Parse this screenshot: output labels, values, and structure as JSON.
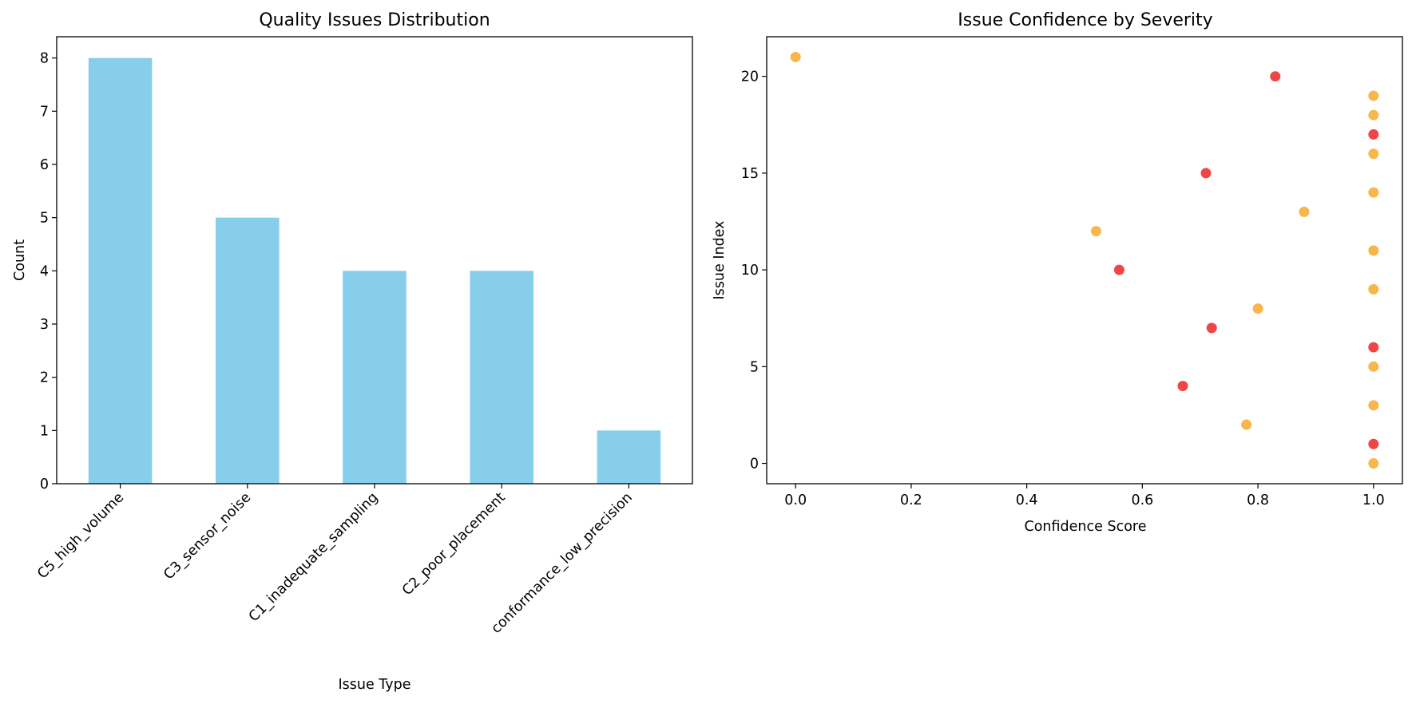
{
  "chart_data": [
    {
      "type": "bar",
      "title": "Quality Issues Distribution",
      "xlabel": "Issue Type",
      "ylabel": "Count",
      "categories": [
        "C5_high_volume",
        "C3_sensor_noise",
        "C1_inadequate_sampling",
        "C2_poor_placement",
        "conformance_low_precision"
      ],
      "values": [
        8,
        5,
        4,
        4,
        1
      ],
      "ylim": [
        0,
        8.4
      ],
      "yticks": [
        0,
        1,
        2,
        3,
        4,
        5,
        6,
        7,
        8
      ],
      "bar_color": "#87ceeb",
      "grid": false,
      "legend": "none"
    },
    {
      "type": "scatter",
      "title": "Issue Confidence by Severity",
      "xlabel": "Confidence Score",
      "ylabel": "Issue Index",
      "xlim": [
        -0.05,
        1.05
      ],
      "ylim": [
        -1.05,
        22.05
      ],
      "xticks": [
        "0.0",
        "0.2",
        "0.4",
        "0.6",
        "0.8",
        "1.0"
      ],
      "yticks": [
        "0",
        "5",
        "10",
        "15",
        "20"
      ],
      "grid": false,
      "legend": "none",
      "severity_colors": {
        "high": "#ee1c1c",
        "medium": "#f6a623"
      },
      "points": [
        {
          "x": 1.0,
          "y": 0,
          "severity": "medium"
        },
        {
          "x": 1.0,
          "y": 1,
          "severity": "high"
        },
        {
          "x": 0.78,
          "y": 2,
          "severity": "medium"
        },
        {
          "x": 1.0,
          "y": 3,
          "severity": "medium"
        },
        {
          "x": 0.67,
          "y": 4,
          "severity": "high"
        },
        {
          "x": 1.0,
          "y": 5,
          "severity": "medium"
        },
        {
          "x": 1.0,
          "y": 6,
          "severity": "high"
        },
        {
          "x": 0.72,
          "y": 7,
          "severity": "high"
        },
        {
          "x": 0.8,
          "y": 8,
          "severity": "medium"
        },
        {
          "x": 1.0,
          "y": 9,
          "severity": "medium"
        },
        {
          "x": 0.56,
          "y": 10,
          "severity": "high"
        },
        {
          "x": 1.0,
          "y": 11,
          "severity": "medium"
        },
        {
          "x": 0.52,
          "y": 12,
          "severity": "medium"
        },
        {
          "x": 0.88,
          "y": 13,
          "severity": "medium"
        },
        {
          "x": 1.0,
          "y": 14,
          "severity": "medium"
        },
        {
          "x": 0.71,
          "y": 15,
          "severity": "high"
        },
        {
          "x": 1.0,
          "y": 16,
          "severity": "medium"
        },
        {
          "x": 1.0,
          "y": 17,
          "severity": "high"
        },
        {
          "x": 1.0,
          "y": 18,
          "severity": "medium"
        },
        {
          "x": 1.0,
          "y": 19,
          "severity": "medium"
        },
        {
          "x": 0.83,
          "y": 20,
          "severity": "high"
        },
        {
          "x": 0.0,
          "y": 21,
          "severity": "medium"
        }
      ]
    }
  ]
}
